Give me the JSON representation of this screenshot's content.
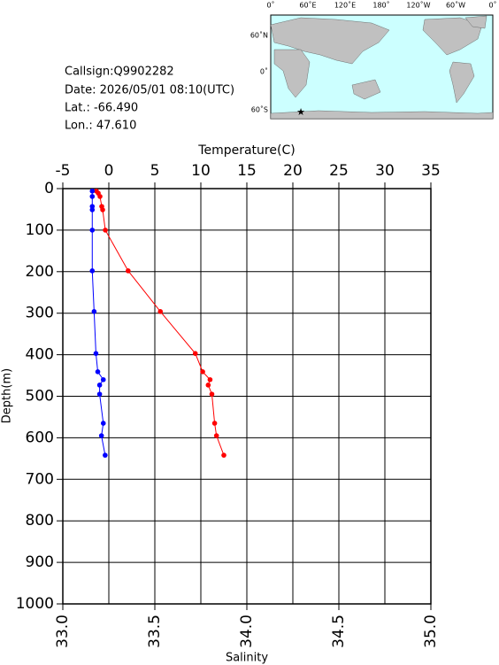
{
  "info": {
    "callsign": "Callsign:Q9902282",
    "date": "Date:  2026/05/01 08:10(UTC)",
    "lat": "Lat.:  -66.490",
    "lon": "Lon.:  47.610"
  },
  "map": {
    "xlabels": [
      "0˚",
      "60˚E",
      "120˚E",
      "180˚",
      "120˚W",
      "60˚W",
      "0˚"
    ],
    "ylabels": [
      "60˚N",
      "0˚",
      "60˚S"
    ]
  },
  "chart_data": {
    "type": "line",
    "x_label": "Temperature(C)",
    "x2_label": "Salinity",
    "y_label": "Depth(m)",
    "xlim": [
      -5,
      35
    ],
    "xticks": [
      -5,
      0,
      5,
      10,
      15,
      20,
      25,
      30,
      35
    ],
    "x2lim": [
      33,
      35
    ],
    "x2ticks": [
      {
        "value": 33,
        "label": "33.0"
      },
      {
        "value": 33.5,
        "label": "33.5"
      },
      {
        "value": 34,
        "label": "34.0"
      },
      {
        "value": 34.5,
        "label": "34.5"
      },
      {
        "value": 35,
        "label": "35.0"
      }
    ],
    "ylim": [
      0,
      1000
    ],
    "yticks": [
      0,
      100,
      200,
      300,
      400,
      500,
      600,
      700,
      800,
      900,
      1000
    ],
    "grid": true,
    "series": [
      {
        "axis": "x",
        "color": "#ff0000",
        "x": [
          -1.35,
          -1.15,
          -0.96,
          -0.77,
          -0.67,
          -0.38,
          2.1,
          5.6,
          9.4,
          10.2,
          11.0,
          10.8,
          11.2,
          11.5,
          11.7,
          12.5
        ],
        "y": [
          6,
          11,
          19,
          43,
          51,
          100,
          198,
          296,
          397,
          441,
          460,
          473,
          495,
          565,
          595,
          642
        ]
      },
      {
        "axis": "x2",
        "color": "#0000ff",
        "x": [
          33.16,
          33.16,
          33.16,
          33.16,
          33.16,
          33.16,
          33.17,
          33.18,
          33.19,
          33.22,
          33.2,
          33.2,
          33.22,
          33.21,
          33.23
        ],
        "y": [
          6,
          19,
          43,
          51,
          100,
          198,
          296,
          397,
          441,
          460,
          473,
          495,
          565,
          595,
          642
        ]
      }
    ]
  }
}
